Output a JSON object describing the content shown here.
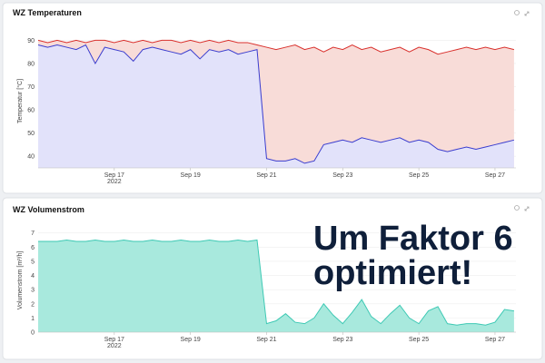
{
  "chart_data": [
    {
      "type": "area",
      "title": "WZ Temperaturen",
      "y_label": "Temperatur [°C]",
      "x_year_label": "2022",
      "grid": true,
      "x": [
        15,
        15.25,
        15.5,
        15.75,
        16,
        16.25,
        16.5,
        16.75,
        17,
        17.25,
        17.5,
        17.75,
        18,
        18.25,
        18.5,
        18.75,
        19,
        19.25,
        19.5,
        19.75,
        20,
        20.25,
        20.5,
        20.75,
        21,
        21.25,
        21.5,
        21.75,
        22,
        22.25,
        22.5,
        22.75,
        23,
        23.25,
        23.5,
        23.75,
        24,
        24.25,
        24.5,
        24.75,
        25,
        25.25,
        25.5,
        25.75,
        26,
        26.25,
        26.5,
        26.75,
        27,
        27.25,
        27.5
      ],
      "xlim": [
        15,
        27.55
      ],
      "xticks": [
        {
          "value": 17,
          "label": "Sep 17"
        },
        {
          "value": 19,
          "label": "Sep 19"
        },
        {
          "value": 21,
          "label": "Sep 21"
        },
        {
          "value": 23,
          "label": "Sep 23"
        },
        {
          "value": 25,
          "label": "Sep 25"
        },
        {
          "value": 27,
          "label": "Sep 27"
        }
      ],
      "ylim": [
        35,
        92.5
      ],
      "yticks": [
        40,
        50,
        60,
        70,
        80,
        90
      ],
      "series": [
        {
          "color": "#d9302c",
          "fill": "#f8dcd8",
          "values": [
            90,
            89,
            90,
            89,
            90,
            89,
            90,
            90,
            89,
            90,
            89,
            90,
            89,
            90,
            90,
            89,
            90,
            89,
            90,
            89,
            90,
            89,
            89,
            88,
            87,
            86,
            87,
            88,
            86,
            87,
            85,
            87,
            86,
            88,
            86,
            87,
            85,
            86,
            87,
            85,
            87,
            86,
            84,
            85,
            86,
            87,
            86,
            87,
            86,
            87,
            86
          ]
        },
        {
          "color": "#3a3dcf",
          "fill": "#e2e2fa",
          "values": [
            88,
            87,
            88,
            87,
            86,
            88,
            80,
            87,
            86,
            85,
            81,
            86,
            87,
            86,
            85,
            84,
            86,
            82,
            86,
            85,
            86,
            84,
            85,
            86,
            39,
            38,
            38,
            39,
            37,
            38,
            45,
            46,
            47,
            46,
            48,
            47,
            46,
            47,
            48,
            46,
            47,
            46,
            43,
            42,
            43,
            44,
            43,
            44,
            45,
            46,
            47
          ]
        }
      ]
    },
    {
      "type": "area",
      "title": "WZ Volumenstrom",
      "y_label": "Volumenstrom [m³/h]",
      "x_year_label": "2022",
      "grid": true,
      "x": [
        15,
        15.25,
        15.5,
        15.75,
        16,
        16.25,
        16.5,
        16.75,
        17,
        17.25,
        17.5,
        17.75,
        18,
        18.25,
        18.5,
        18.75,
        19,
        19.25,
        19.5,
        19.75,
        20,
        20.25,
        20.5,
        20.75,
        21,
        21.25,
        21.5,
        21.75,
        22,
        22.25,
        22.5,
        22.75,
        23,
        23.25,
        23.5,
        23.75,
        24,
        24.25,
        24.5,
        24.75,
        25,
        25.25,
        25.5,
        25.75,
        26,
        26.25,
        26.5,
        26.75,
        27,
        27.25,
        27.5
      ],
      "xlim": [
        15,
        27.55
      ],
      "xticks": [
        {
          "value": 17,
          "label": "Sep 17"
        },
        {
          "value": 19,
          "label": "Sep 19"
        },
        {
          "value": 21,
          "label": "Sep 21"
        },
        {
          "value": 23,
          "label": "Sep 23"
        },
        {
          "value": 25,
          "label": "Sep 25"
        },
        {
          "value": 27,
          "label": "Sep 27"
        }
      ],
      "ylim": [
        0,
        7.3
      ],
      "yticks": [
        0,
        1,
        2,
        3,
        4,
        5,
        6,
        7
      ],
      "series": [
        {
          "color": "#3ec9b4",
          "fill": "#a8e9dd",
          "values": [
            6.4,
            6.4,
            6.4,
            6.5,
            6.4,
            6.4,
            6.5,
            6.4,
            6.4,
            6.5,
            6.4,
            6.4,
            6.5,
            6.4,
            6.4,
            6.5,
            6.4,
            6.4,
            6.5,
            6.4,
            6.4,
            6.5,
            6.4,
            6.5,
            0.6,
            0.8,
            1.3,
            0.7,
            0.6,
            1.0,
            2.0,
            1.2,
            0.6,
            1.4,
            2.3,
            1.1,
            0.6,
            1.3,
            1.9,
            1.0,
            0.6,
            1.5,
            1.8,
            0.6,
            0.5,
            0.6,
            0.6,
            0.5,
            0.7,
            1.6,
            1.5
          ]
        }
      ]
    }
  ],
  "overlay": {
    "lines": [
      "Um Faktor 6",
      "optimiert!"
    ]
  }
}
